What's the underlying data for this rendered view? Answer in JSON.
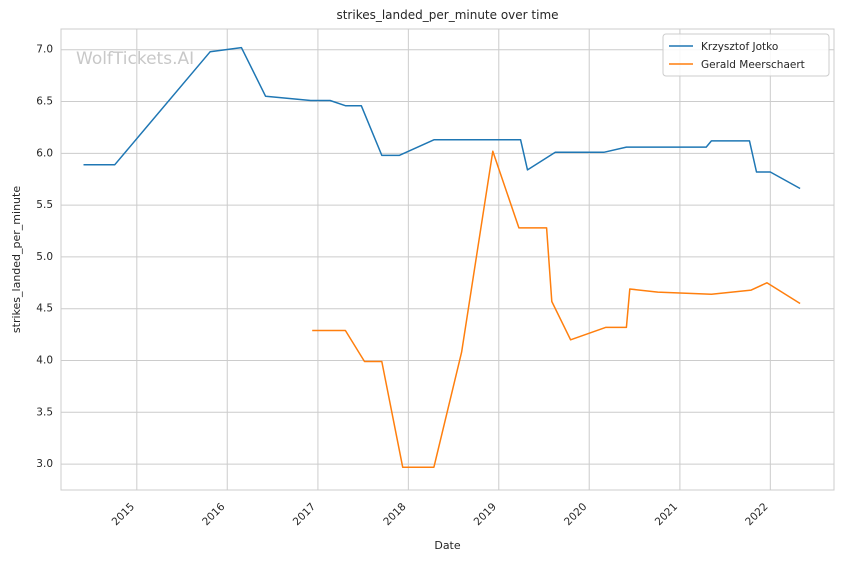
{
  "watermark": "WolfTickets.AI",
  "chart_data": {
    "type": "line",
    "title": "strikes_landed_per_minute over time",
    "xlabel": "Date",
    "ylabel": "strikes_landed_per_minute",
    "xlim": [
      "2014-03-01",
      "2022-09-15"
    ],
    "ylim": [
      2.75,
      7.2
    ],
    "x_ticks": [
      "2015",
      "2016",
      "2017",
      "2018",
      "2019",
      "2020",
      "2021",
      "2022"
    ],
    "y_ticks": [
      "3.0",
      "3.5",
      "4.0",
      "4.5",
      "5.0",
      "5.5",
      "6.0",
      "6.5",
      "7.0"
    ],
    "grid": true,
    "legend_position": "top-right",
    "series": [
      {
        "name": "Krzysztof Jotko",
        "color": "#1f77b4",
        "points": [
          [
            "2014-05-31",
            5.89
          ],
          [
            "2014-10-04",
            5.89
          ],
          [
            "2015-10-24",
            6.98
          ],
          [
            "2016-02-27",
            7.02
          ],
          [
            "2016-06-04",
            6.55
          ],
          [
            "2016-12-03",
            6.51
          ],
          [
            "2017-02-19",
            6.51
          ],
          [
            "2017-04-22",
            6.46
          ],
          [
            "2017-06-25",
            6.46
          ],
          [
            "2017-09-16",
            5.98
          ],
          [
            "2017-11-25",
            5.98
          ],
          [
            "2018-04-14",
            6.13
          ],
          [
            "2018-09-15",
            6.13
          ],
          [
            "2019-03-30",
            6.13
          ],
          [
            "2019-04-27",
            5.84
          ],
          [
            "2019-08-17",
            6.01
          ],
          [
            "2020-02-29",
            6.01
          ],
          [
            "2020-05-30",
            6.06
          ],
          [
            "2021-04-17",
            6.06
          ],
          [
            "2021-05-08",
            6.12
          ],
          [
            "2021-10-09",
            6.12
          ],
          [
            "2021-11-06",
            5.82
          ],
          [
            "2022-01-01",
            5.82
          ],
          [
            "2022-05-01",
            5.66
          ]
        ]
      },
      {
        "name": "Gerald Meerschaert",
        "color": "#ff7f0e",
        "points": [
          [
            "2016-12-09",
            4.29
          ],
          [
            "2017-04-22",
            4.29
          ],
          [
            "2017-07-08",
            3.99
          ],
          [
            "2017-09-16",
            3.99
          ],
          [
            "2017-12-09",
            2.97
          ],
          [
            "2018-04-14",
            2.97
          ],
          [
            "2018-08-04",
            4.08
          ],
          [
            "2018-12-08",
            6.02
          ],
          [
            "2019-03-23",
            5.28
          ],
          [
            "2019-07-13",
            5.28
          ],
          [
            "2019-08-03",
            4.57
          ],
          [
            "2019-10-18",
            4.2
          ],
          [
            "2020-03-07",
            4.32
          ],
          [
            "2020-05-30",
            4.32
          ],
          [
            "2020-06-13",
            4.69
          ],
          [
            "2020-10-04",
            4.66
          ],
          [
            "2021-05-08",
            4.64
          ],
          [
            "2021-10-16",
            4.68
          ],
          [
            "2021-12-18",
            4.75
          ],
          [
            "2022-05-01",
            4.55
          ]
        ]
      }
    ]
  }
}
